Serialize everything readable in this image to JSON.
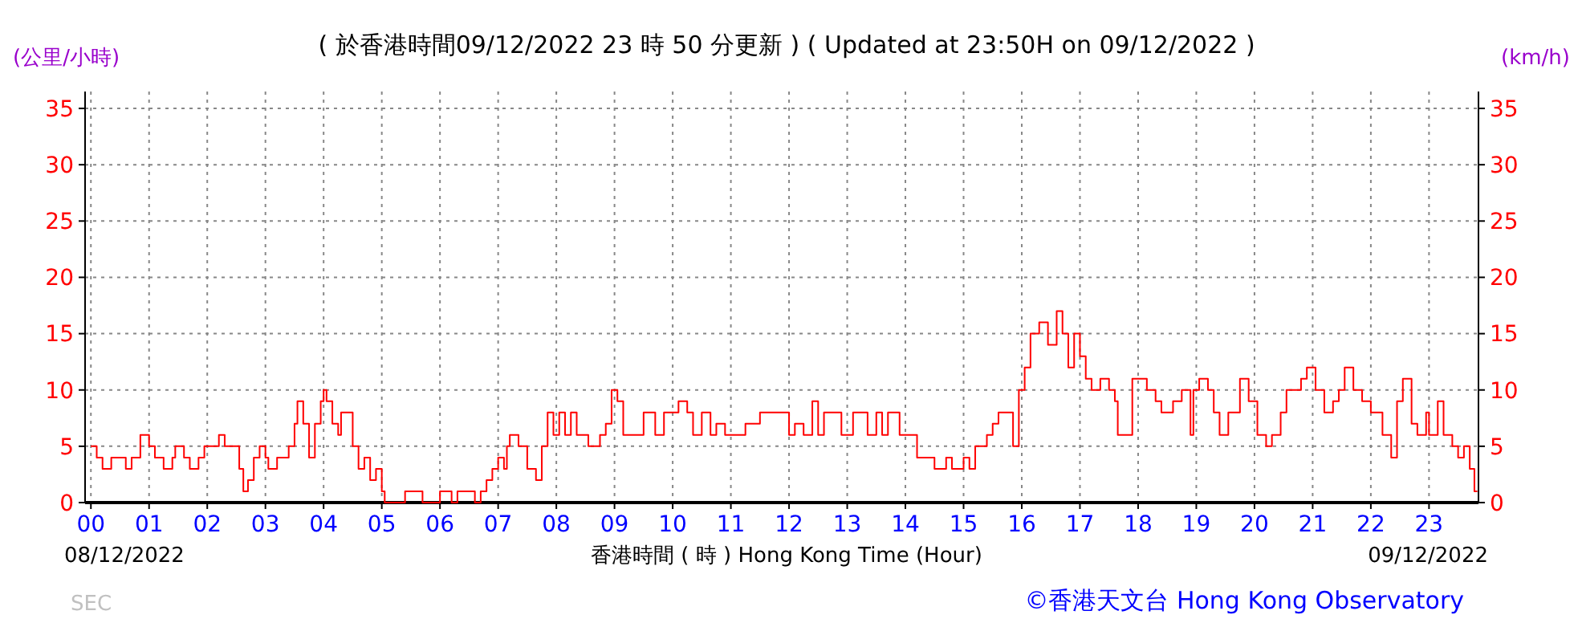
{
  "chart_data": {
    "type": "step",
    "title": "( 於香港時間09/12/2022 23 時 50 分更新 ) ( Updated at 23:50H on 09/12/2022 )",
    "ylabel": "(公里/小時)",
    "y2label": "(km/h)",
    "xlabel": "香港時間 ( 時 ) Hong Kong Time (Hour)",
    "annotations": [
      "08/12/2022",
      "09/12/2022",
      "SEC",
      "©香港天文台 Hong Kong Observatory"
    ],
    "x": [
      0,
      0.1,
      0.2,
      0.35,
      0.5,
      0.6,
      0.7,
      0.85,
      1.0,
      1.1,
      1.25,
      1.4,
      1.45,
      1.6,
      1.7,
      1.85,
      1.95,
      2.2,
      2.3,
      2.55,
      2.62,
      2.7,
      2.8,
      2.9,
      3.0,
      3.05,
      3.2,
      3.4,
      3.5,
      3.55,
      3.65,
      3.75,
      3.85,
      3.95,
      4.0,
      4.05,
      4.15,
      4.25,
      4.3,
      4.4,
      4.5,
      4.6,
      4.7,
      4.8,
      4.9,
      5.0,
      5.05,
      5.4,
      5.7,
      6.0,
      6.2,
      6.3,
      6.6,
      6.7,
      6.8,
      6.9,
      7.0,
      7.1,
      7.15,
      7.2,
      7.35,
      7.5,
      7.65,
      7.75,
      7.85,
      7.95,
      8.05,
      8.15,
      8.25,
      8.35,
      8.55,
      8.75,
      8.85,
      8.95,
      9.05,
      9.15,
      9.5,
      9.7,
      9.85,
      10.1,
      10.25,
      10.35,
      10.5,
      10.65,
      10.75,
      10.9,
      11.25,
      11.5,
      12.0,
      12.1,
      12.25,
      12.4,
      12.5,
      12.6,
      12.9,
      13.1,
      13.35,
      13.5,
      13.6,
      13.7,
      13.9,
      14.2,
      14.5,
      14.7,
      14.8,
      15.0,
      15.1,
      15.2,
      15.4,
      15.5,
      15.6,
      15.85,
      15.95,
      16.05,
      16.15,
      16.3,
      16.45,
      16.6,
      16.7,
      16.8,
      16.9,
      17.0,
      17.1,
      17.2,
      17.35,
      17.5,
      17.6,
      17.65,
      17.9,
      18.15,
      18.3,
      18.4,
      18.6,
      18.75,
      18.9,
      18.95,
      19.05,
      19.2,
      19.3,
      19.4,
      19.55,
      19.75,
      19.9,
      20.05,
      20.2,
      20.3,
      20.45,
      20.55,
      20.8,
      20.9,
      21.05,
      21.2,
      21.35,
      21.45,
      21.55,
      21.7,
      21.85,
      22.0,
      22.2,
      22.35,
      22.45,
      22.55,
      22.7,
      22.8,
      22.95,
      23.0,
      23.15,
      23.25,
      23.4,
      23.5,
      23.6,
      23.7,
      23.78,
      23.83
    ],
    "values": [
      5,
      4,
      3,
      4,
      4,
      3,
      4,
      6,
      5,
      4,
      3,
      4,
      5,
      4,
      3,
      4,
      5,
      6,
      5,
      3,
      1,
      2,
      4,
      5,
      4,
      3,
      4,
      5,
      7,
      9,
      7,
      4,
      7,
      9,
      10,
      9,
      7,
      6,
      8,
      8,
      5,
      3,
      4,
      2,
      3,
      1,
      0,
      1,
      0,
      1,
      0,
      1,
      0,
      1,
      2,
      3,
      4,
      3,
      5,
      6,
      5,
      3,
      2,
      5,
      8,
      6,
      8,
      6,
      8,
      6,
      5,
      6,
      7,
      10,
      9,
      6,
      8,
      6,
      8,
      9,
      8,
      6,
      8,
      6,
      7,
      6,
      7,
      8,
      6,
      7,
      6,
      9,
      6,
      8,
      6,
      8,
      6,
      8,
      6,
      8,
      6,
      4,
      3,
      4,
      3,
      4,
      3,
      5,
      6,
      7,
      8,
      5,
      10,
      12,
      15,
      16,
      14,
      17,
      15,
      12,
      15,
      13,
      11,
      10,
      11,
      10,
      9,
      6,
      11,
      10,
      9,
      8,
      9,
      10,
      6,
      10,
      11,
      10,
      8,
      6,
      8,
      11,
      9,
      6,
      5,
      6,
      8,
      10,
      11,
      12,
      10,
      8,
      9,
      10,
      12,
      10,
      9,
      8,
      6,
      4,
      9,
      11,
      7,
      6,
      8,
      6,
      9,
      6,
      5,
      4,
      5,
      3,
      1,
      1
    ],
    "color": "#ff0000",
    "xlim": [
      -0.1,
      23.85
    ],
    "xticks": [
      {
        "value": 0,
        "label": "00"
      },
      {
        "value": 1,
        "label": "01"
      },
      {
        "value": 2,
        "label": "02"
      },
      {
        "value": 3,
        "label": "03"
      },
      {
        "value": 4,
        "label": "04"
      },
      {
        "value": 5,
        "label": "05"
      },
      {
        "value": 6,
        "label": "06"
      },
      {
        "value": 7,
        "label": "07"
      },
      {
        "value": 8,
        "label": "08"
      },
      {
        "value": 9,
        "label": "09"
      },
      10,
      11,
      12,
      13,
      14,
      15,
      16,
      17,
      18,
      19,
      20,
      21,
      22,
      23
    ],
    "ylim": [
      0,
      36.5
    ],
    "yticks": [
      0,
      5,
      10,
      15,
      20,
      25,
      30,
      35
    ],
    "y2lim": [
      0,
      36.5
    ],
    "y2ticks": [
      0,
      5,
      10,
      15,
      20,
      25,
      30,
      35
    ],
    "grid": true
  }
}
